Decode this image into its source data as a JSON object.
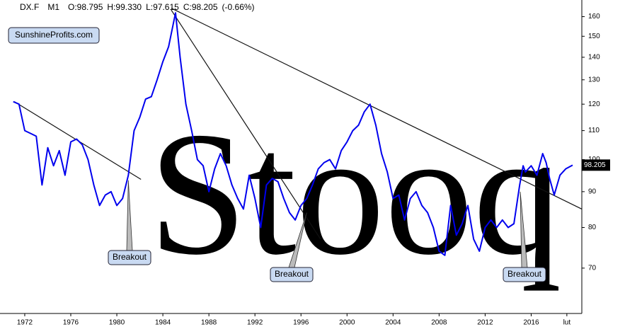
{
  "chart_data": {
    "type": "line",
    "header": [
      "DX.F",
      "M1",
      "O:98.795",
      "H:99.330",
      "L:97.615",
      "C:98.205",
      "(-0.66%)"
    ],
    "badge": "SunshineProfits.com",
    "watermark": "Stooq",
    "log_scale": true,
    "xlim": [
      1969.85,
      2020.4
    ],
    "ylim": [
      60.3,
      169
    ],
    "xticks": [
      1972,
      1976,
      1980,
      1984,
      1988,
      1992,
      1996,
      2000,
      2004,
      2008,
      2012,
      2016,
      {
        "value": 2019.1,
        "label": "lut"
      }
    ],
    "yticks": [
      70,
      80,
      90,
      100,
      110,
      120,
      130,
      140,
      150,
      160
    ],
    "last_value_label": "98.205",
    "series": [
      {
        "name": "DX.F",
        "color": "#0000ee",
        "x": [
          1971,
          1971.5,
          1972,
          1972.5,
          1973,
          1973.5,
          1974,
          1974.5,
          1975,
          1975.5,
          1976,
          1976.5,
          1977,
          1977.5,
          1978,
          1978.5,
          1979,
          1979.5,
          1980,
          1980.5,
          1981,
          1981.5,
          1982,
          1982.5,
          1983,
          1983.5,
          1984,
          1984.5,
          1985.1,
          1985.5,
          1986,
          1986.5,
          1987,
          1987.5,
          1988,
          1988.5,
          1989,
          1989.5,
          1990,
          1990.5,
          1991,
          1991.5,
          1992,
          1992.5,
          1993,
          1993.5,
          1994,
          1994.5,
          1995,
          1995.5,
          1996,
          1996.5,
          1997,
          1997.5,
          1998,
          1998.5,
          1999,
          1999.5,
          2000,
          2000.5,
          2001,
          2001.5,
          2002,
          2002.5,
          2003,
          2003.5,
          2004,
          2004.5,
          2005,
          2005.5,
          2006,
          2006.5,
          2007,
          2007.5,
          2008,
          2008.5,
          2009,
          2009.5,
          2010,
          2010.5,
          2011,
          2011.5,
          2012,
          2012.5,
          2013,
          2013.5,
          2014,
          2014.5,
          2015,
          2015.3,
          2015.5,
          2016,
          2016.5,
          2017,
          2017.3,
          2017.6,
          2018,
          2018.5,
          2019,
          2019.5,
          2019.6
        ],
        "values": [
          121,
          120,
          110,
          109,
          108,
          92,
          104,
          98,
          103,
          95,
          106,
          107,
          105,
          100,
          92,
          86,
          89,
          90,
          86,
          88,
          95,
          110,
          115,
          122,
          123,
          130,
          138,
          145,
          162,
          140,
          120,
          110,
          100,
          98,
          90,
          97,
          102,
          98,
          92,
          88,
          85,
          95,
          88,
          80,
          92,
          94,
          93,
          88,
          84,
          82,
          86,
          88,
          92,
          97,
          99,
          100,
          97,
          103,
          106,
          110,
          112,
          117,
          120,
          112,
          102,
          96,
          88,
          89,
          82,
          88,
          90,
          86,
          84,
          80,
          74,
          73,
          86,
          78,
          81,
          86,
          77,
          74,
          80,
          82,
          80,
          82,
          80,
          81,
          92,
          98,
          96,
          98,
          95,
          102,
          99,
          94,
          89,
          95,
          97,
          98,
          98.205
        ]
      }
    ],
    "trendlines": [
      {
        "x": [
          1971.1,
          1982.1
        ],
        "y": [
          121,
          93.7
        ]
      },
      {
        "x": [
          1984.73,
          1997.7
        ],
        "y": [
          163.5,
          77
        ]
      },
      {
        "x": [
          1984.73,
          2020.4
        ],
        "y": [
          164.5,
          85
        ]
      }
    ],
    "annotations": [
      {
        "text": "Breakout",
        "x": 1981,
        "y": 93.4
      },
      {
        "text": "Breakout",
        "x": 1996.5,
        "y": 84
      },
      {
        "text": "Breakout",
        "x": 2015.05,
        "y": 90
      }
    ]
  }
}
